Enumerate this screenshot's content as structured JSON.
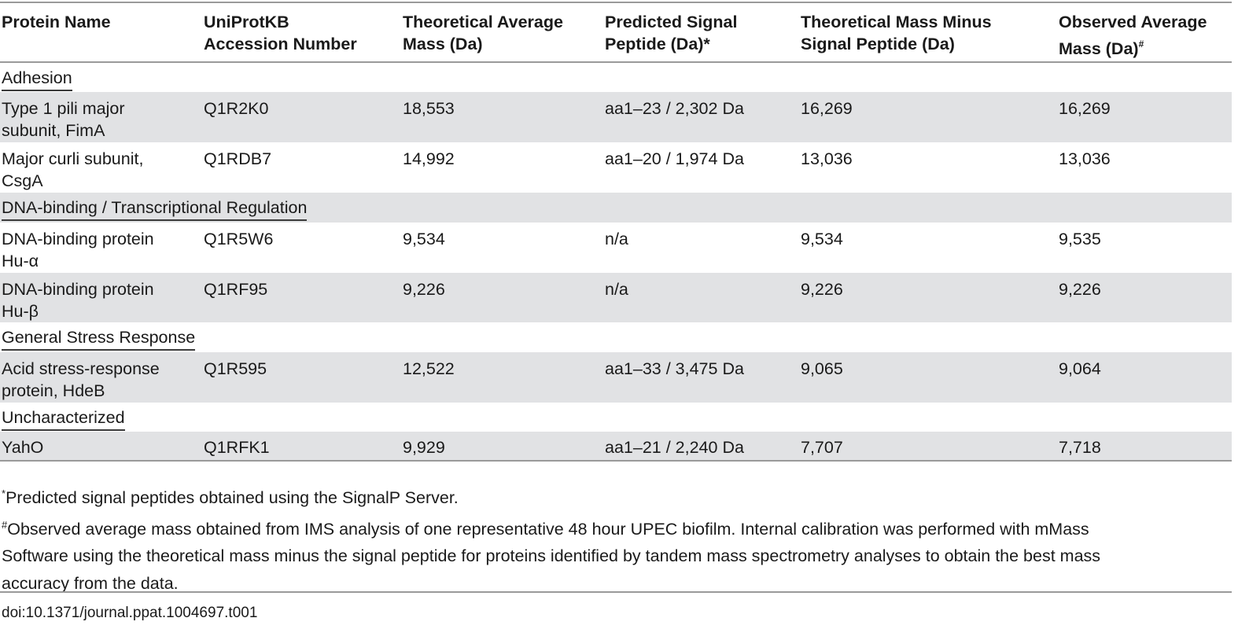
{
  "table": {
    "columns": [
      {
        "line1": "Protein Name",
        "line2": ""
      },
      {
        "line1": "UniProtKB",
        "line2": "Accession Number"
      },
      {
        "line1": "Theoretical Average",
        "line2": "Mass (Da)"
      },
      {
        "line1": "Predicted Signal",
        "line2": "Peptide (Da)*"
      },
      {
        "line1": "Theoretical Mass Minus",
        "line2": "Signal Peptide (Da)"
      },
      {
        "line1": "Observed Average",
        "line2": "Mass (Da)",
        "sup": "#"
      }
    ],
    "sections": [
      {
        "title": "Adhesion",
        "rows": [
          {
            "name1": "Type 1 pili major",
            "name2": "subunit, FimA",
            "accession": "Q1R2K0",
            "theoretical": "18,553",
            "signal": "aa1–23 / 2,302 Da",
            "minus_signal": "16,269",
            "observed": "16,269"
          },
          {
            "name1": "Major curli subunit,",
            "name2": "CsgA",
            "accession": "Q1RDB7",
            "theoretical": "14,992",
            "signal": "aa1–20 / 1,974 Da",
            "minus_signal": "13,036",
            "observed": "13,036"
          }
        ]
      },
      {
        "title": "DNA-binding / Transcriptional Regulation",
        "rows": [
          {
            "name1": "DNA-binding protein",
            "name2": "Hu-α",
            "accession": "Q1R5W6",
            "theoretical": "9,534",
            "signal": "n/a",
            "minus_signal": "9,534",
            "observed": "9,535"
          },
          {
            "name1": "DNA-binding protein",
            "name2": "Hu-β",
            "accession": "Q1RF95",
            "theoretical": "9,226",
            "signal": "n/a",
            "minus_signal": "9,226",
            "observed": "9,226"
          }
        ]
      },
      {
        "title": "General Stress Response",
        "rows": [
          {
            "name1": "Acid stress-response",
            "name2": "protein, HdeB",
            "accession": "Q1R595",
            "theoretical": "12,522",
            "signal": "aa1–33 / 3,475 Da",
            "minus_signal": "9,065",
            "observed": "9,064"
          }
        ]
      },
      {
        "title": "Uncharacterized",
        "rows": [
          {
            "name1": "YahO",
            "name2": "",
            "accession": "Q1RFK1",
            "theoretical": "9,929",
            "signal": "aa1–21 / 2,240 Da",
            "minus_signal": "7,707",
            "observed": "7,718"
          }
        ]
      }
    ]
  },
  "footnotes": {
    "note1_mark": "*",
    "note1_text": "Predicted signal peptides obtained using the SignalP Server.",
    "note2_mark": "#",
    "note2_line1": "Observed average mass obtained from IMS analysis of one representative 48 hour UPEC biofilm. Internal calibration was performed with mMass",
    "note2_line2": "Software using the theoretical mass minus the signal peptide for proteins identified by tandem mass spectrometry analyses to obtain the best mass",
    "note2_line3": "accuracy from the data."
  },
  "doi": "doi:10.1371/journal.ppat.1004697.t001"
}
